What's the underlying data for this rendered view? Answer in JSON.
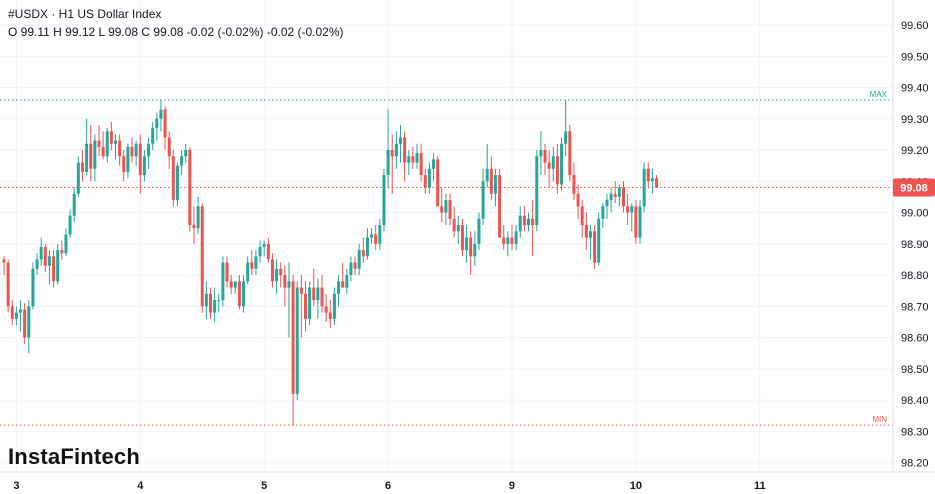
{
  "header": {
    "title": "#USDX · H1 US Dollar Index",
    "ohlc": "O 99.11 H 99.12 L 99.08 C 99.08 -0.02 (-0.02%) -0.02 (-0.02%)"
  },
  "logo": {
    "text": "InstaFintech"
  },
  "colors": {
    "up": "#26a69a",
    "down": "#ef5350",
    "grid": "#f0f3fa",
    "max_line": "#26a69a",
    "min_line": "#ef5350",
    "price_line": "#ef5350"
  },
  "chart_data": {
    "type": "candlestick",
    "symbol": "#USDX",
    "timeframe": "H1",
    "title": "US Dollar Index",
    "ylim": [
      98.17,
      99.68
    ],
    "yticks": [
      98.2,
      98.3,
      98.4,
      98.5,
      98.6,
      98.7,
      98.8,
      98.9,
      99.0,
      99.1,
      99.2,
      99.3,
      99.4,
      99.5,
      99.6
    ],
    "ytick_labels": [
      "98.20",
      "98.30",
      "98.40",
      "98.50",
      "98.60",
      "98.70",
      "98.80",
      "98.90",
      "99.00",
      "99.10",
      "99.20",
      "99.30",
      "99.40",
      "99.50",
      "99.60"
    ],
    "xticks": [
      {
        "label": "3",
        "index": 3
      },
      {
        "label": "4",
        "index": 33
      },
      {
        "label": "5",
        "index": 63
      },
      {
        "label": "6",
        "index": 93
      },
      {
        "label": "9",
        "index": 123
      },
      {
        "label": "10",
        "index": 153
      },
      {
        "label": "11",
        "index": 183
      }
    ],
    "current_price": 99.08,
    "current_price_label": "99.08",
    "max": {
      "value": 99.36,
      "label": "MAX"
    },
    "min": {
      "value": 98.32,
      "label": "MIN"
    },
    "grid": true,
    "candles": [
      [
        98.85,
        98.86,
        98.8,
        98.84
      ],
      [
        98.84,
        98.85,
        98.68,
        98.7
      ],
      [
        98.7,
        98.72,
        98.64,
        98.66
      ],
      [
        98.66,
        98.7,
        98.64,
        98.68
      ],
      [
        98.68,
        98.72,
        98.62,
        98.69
      ],
      [
        98.69,
        98.71,
        98.58,
        98.6
      ],
      [
        98.6,
        98.72,
        98.55,
        98.7
      ],
      [
        98.7,
        98.84,
        98.69,
        98.82
      ],
      [
        98.82,
        98.87,
        98.8,
        98.85
      ],
      [
        98.85,
        98.92,
        98.83,
        98.89
      ],
      [
        98.89,
        98.9,
        98.81,
        98.83
      ],
      [
        98.83,
        98.88,
        98.77,
        98.86
      ],
      [
        98.86,
        98.88,
        98.76,
        98.78
      ],
      [
        98.78,
        98.9,
        98.77,
        98.88
      ],
      [
        98.88,
        98.91,
        98.85,
        98.87
      ],
      [
        98.87,
        98.95,
        98.86,
        98.93
      ],
      [
        98.93,
        99.01,
        98.92,
        98.99
      ],
      [
        98.99,
        99.08,
        98.97,
        99.06
      ],
      [
        99.06,
        99.18,
        99.05,
        99.16
      ],
      [
        99.16,
        99.2,
        99.1,
        99.13
      ],
      [
        99.13,
        99.3,
        99.12,
        99.22
      ],
      [
        99.22,
        99.28,
        99.1,
        99.14
      ],
      [
        99.14,
        99.25,
        99.1,
        99.23
      ],
      [
        99.23,
        99.28,
        99.18,
        99.21
      ],
      [
        99.21,
        99.26,
        99.17,
        99.18
      ],
      [
        99.18,
        99.27,
        99.16,
        99.26
      ],
      [
        99.26,
        99.29,
        99.2,
        99.22
      ],
      [
        99.22,
        99.25,
        99.17,
        99.23
      ],
      [
        99.23,
        99.25,
        99.15,
        99.18
      ],
      [
        99.18,
        99.2,
        99.1,
        99.13
      ],
      [
        99.13,
        99.22,
        99.11,
        99.21
      ],
      [
        99.21,
        99.24,
        99.16,
        99.18
      ],
      [
        99.18,
        99.23,
        99.15,
        99.22
      ],
      [
        99.22,
        99.25,
        99.06,
        99.12
      ],
      [
        99.12,
        99.2,
        99.1,
        99.18
      ],
      [
        99.18,
        99.24,
        99.14,
        99.22
      ],
      [
        99.22,
        99.29,
        99.2,
        99.27
      ],
      [
        99.27,
        99.32,
        99.23,
        99.3
      ],
      [
        99.3,
        99.36,
        99.26,
        99.33
      ],
      [
        99.33,
        99.34,
        99.2,
        99.24
      ],
      [
        99.24,
        99.26,
        99.14,
        99.18
      ],
      [
        99.18,
        99.2,
        99.02,
        99.04
      ],
      [
        99.04,
        99.16,
        99.02,
        99.15
      ],
      [
        99.15,
        99.2,
        99.12,
        99.18
      ],
      [
        99.18,
        99.22,
        99.16,
        99.2
      ],
      [
        99.2,
        99.21,
        98.94,
        98.96
      ],
      [
        98.96,
        99.02,
        98.9,
        98.95
      ],
      [
        98.95,
        99.05,
        98.93,
        99.02
      ],
      [
        99.02,
        99.03,
        98.68,
        98.7
      ],
      [
        98.7,
        98.78,
        98.66,
        98.74
      ],
      [
        98.74,
        98.76,
        98.66,
        98.68
      ],
      [
        98.68,
        98.76,
        98.65,
        98.72
      ],
      [
        98.72,
        98.74,
        98.68,
        98.72
      ],
      [
        98.72,
        98.86,
        98.7,
        98.84
      ],
      [
        98.84,
        98.86,
        98.76,
        98.78
      ],
      [
        98.78,
        98.8,
        98.74,
        98.76
      ],
      [
        98.76,
        98.78,
        98.74,
        98.78
      ],
      [
        98.78,
        98.8,
        98.69,
        98.7
      ],
      [
        98.7,
        98.8,
        98.68,
        98.78
      ],
      [
        98.78,
        98.86,
        98.77,
        98.84
      ],
      [
        98.84,
        98.88,
        98.8,
        98.82
      ],
      [
        98.82,
        98.88,
        98.8,
        98.86
      ],
      [
        98.86,
        98.91,
        98.84,
        98.89
      ],
      [
        98.89,
        98.91,
        98.86,
        98.9
      ],
      [
        98.9,
        98.92,
        98.84,
        98.85
      ],
      [
        98.85,
        98.87,
        98.76,
        98.78
      ],
      [
        98.78,
        98.85,
        98.74,
        98.82
      ],
      [
        98.82,
        98.84,
        98.76,
        98.8
      ],
      [
        98.8,
        98.83,
        98.7,
        98.76
      ],
      [
        98.76,
        98.84,
        98.6,
        98.78
      ],
      [
        98.78,
        98.8,
        98.32,
        98.42
      ],
      [
        98.42,
        98.78,
        98.4,
        98.76
      ],
      [
        98.76,
        98.8,
        98.6,
        98.74
      ],
      [
        98.74,
        98.78,
        98.62,
        98.66
      ],
      [
        98.66,
        98.78,
        98.64,
        98.76
      ],
      [
        98.76,
        98.82,
        98.7,
        98.72
      ],
      [
        98.72,
        98.79,
        98.66,
        98.76
      ],
      [
        98.76,
        98.8,
        98.68,
        98.7
      ],
      [
        98.7,
        98.74,
        98.65,
        98.68
      ],
      [
        98.68,
        98.72,
        98.63,
        98.66
      ],
      [
        98.66,
        98.76,
        98.64,
        98.74
      ],
      [
        98.74,
        98.8,
        98.7,
        98.78
      ],
      [
        98.78,
        98.84,
        98.76,
        98.76
      ],
      [
        98.76,
        98.82,
        98.74,
        98.8
      ],
      [
        98.8,
        98.86,
        98.78,
        98.84
      ],
      [
        98.84,
        98.86,
        98.8,
        98.82
      ],
      [
        98.82,
        98.9,
        98.8,
        98.88
      ],
      [
        98.88,
        98.92,
        98.84,
        98.86
      ],
      [
        98.86,
        98.95,
        98.85,
        98.92
      ],
      [
        98.92,
        98.95,
        98.9,
        98.93
      ],
      [
        98.93,
        98.96,
        98.88,
        98.9
      ],
      [
        98.9,
        98.98,
        98.88,
        98.96
      ],
      [
        98.96,
        99.14,
        98.94,
        99.12
      ],
      [
        99.12,
        99.33,
        99.08,
        99.2
      ],
      [
        99.2,
        99.25,
        99.06,
        99.18
      ],
      [
        99.18,
        99.26,
        99.14,
        99.22
      ],
      [
        99.22,
        99.28,
        99.16,
        99.24
      ],
      [
        99.24,
        99.26,
        99.1,
        99.16
      ],
      [
        99.16,
        99.2,
        99.12,
        99.18
      ],
      [
        99.18,
        99.21,
        99.14,
        99.16
      ],
      [
        99.16,
        99.22,
        99.14,
        99.19
      ],
      [
        99.19,
        99.22,
        99.1,
        99.12
      ],
      [
        99.12,
        99.14,
        99.06,
        99.08
      ],
      [
        99.08,
        99.16,
        99.06,
        99.14
      ],
      [
        99.14,
        99.19,
        99.1,
        99.17
      ],
      [
        99.17,
        99.18,
        99.02,
        99.02
      ],
      [
        99.02,
        99.08,
        98.97,
        99.0
      ],
      [
        99.0,
        99.06,
        98.96,
        99.04
      ],
      [
        99.04,
        99.06,
        98.96,
        98.98
      ],
      [
        98.98,
        99.02,
        98.92,
        98.94
      ],
      [
        98.94,
        98.99,
        98.9,
        98.96
      ],
      [
        98.96,
        98.98,
        98.86,
        98.88
      ],
      [
        98.88,
        98.96,
        98.84,
        98.92
      ],
      [
        98.92,
        98.94,
        98.8,
        98.86
      ],
      [
        98.86,
        98.94,
        98.83,
        98.9
      ],
      [
        98.9,
        99.0,
        98.88,
        98.98
      ],
      [
        98.98,
        99.14,
        98.96,
        99.1
      ],
      [
        99.1,
        99.22,
        99.08,
        99.14
      ],
      [
        99.14,
        99.18,
        99.04,
        99.06
      ],
      [
        99.06,
        99.14,
        99.02,
        99.12
      ],
      [
        99.12,
        99.14,
        98.92,
        98.92
      ],
      [
        98.92,
        98.96,
        98.88,
        98.9
      ],
      [
        98.9,
        98.94,
        98.86,
        98.92
      ],
      [
        98.92,
        98.96,
        98.88,
        98.9
      ],
      [
        98.9,
        98.96,
        98.88,
        98.94
      ],
      [
        98.94,
        99.02,
        98.92,
        98.99
      ],
      [
        98.99,
        99.02,
        98.94,
        98.96
      ],
      [
        98.96,
        99.0,
        98.94,
        98.98
      ],
      [
        98.98,
        99.04,
        98.86,
        98.96
      ],
      [
        98.96,
        99.2,
        98.94,
        99.18
      ],
      [
        99.18,
        99.26,
        99.12,
        99.2
      ],
      [
        99.2,
        99.22,
        99.12,
        99.16
      ],
      [
        99.16,
        99.2,
        99.08,
        99.14
      ],
      [
        99.14,
        99.21,
        99.1,
        99.18
      ],
      [
        99.18,
        99.22,
        99.06,
        99.09
      ],
      [
        99.09,
        99.24,
        99.07,
        99.22
      ],
      [
        99.22,
        99.36,
        99.18,
        99.26
      ],
      [
        99.26,
        99.28,
        99.1,
        99.12
      ],
      [
        99.12,
        99.16,
        99.04,
        99.06
      ],
      [
        99.06,
        99.09,
        98.98,
        99.02
      ],
      [
        99.02,
        99.04,
        98.92,
        98.96
      ],
      [
        98.96,
        99.0,
        98.88,
        98.92
      ],
      [
        98.92,
        98.96,
        98.85,
        98.94
      ],
      [
        98.94,
        98.96,
        98.82,
        98.84
      ],
      [
        98.84,
        99.0,
        98.83,
        98.98
      ],
      [
        98.98,
        99.03,
        98.95,
        99.02
      ],
      [
        99.02,
        99.06,
        98.98,
        99.04
      ],
      [
        99.04,
        99.08,
        99.0,
        99.06
      ],
      [
        99.06,
        99.1,
        99.03,
        99.05
      ],
      [
        99.05,
        99.09,
        99.02,
        99.08
      ],
      [
        99.08,
        99.1,
        99.0,
        99.02
      ],
      [
        99.02,
        99.06,
        98.96,
        99.0
      ],
      [
        99.0,
        99.03,
        98.94,
        99.02
      ],
      [
        99.02,
        99.04,
        98.9,
        98.92
      ],
      [
        98.92,
        99.04,
        98.9,
        99.02
      ],
      [
        99.02,
        99.16,
        99.0,
        99.14
      ],
      [
        99.14,
        99.16,
        99.08,
        99.1
      ],
      [
        99.1,
        99.14,
        99.06,
        99.11
      ],
      [
        99.11,
        99.12,
        99.08,
        99.08
      ]
    ]
  }
}
